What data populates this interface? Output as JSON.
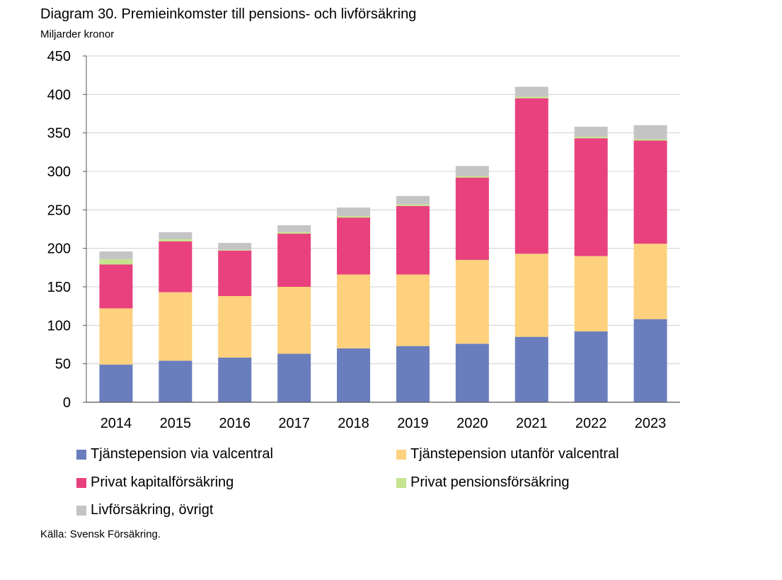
{
  "title": "Diagram 30. Premieinkomster till pensions- och livförsäkring",
  "subtitle": "Miljarder kronor",
  "source": "Källa: Svensk Försäkring.",
  "chart_data": {
    "type": "bar",
    "stacked": true,
    "title": "Diagram 30. Premieinkomster till pensions- och livförsäkring",
    "ylabel": "Miljarder kronor",
    "xlabel": "",
    "ylim": [
      0,
      450
    ],
    "yticks": [
      0,
      50,
      100,
      150,
      200,
      250,
      300,
      350,
      400,
      450
    ],
    "categories": [
      "2014",
      "2015",
      "2016",
      "2017",
      "2018",
      "2019",
      "2020",
      "2021",
      "2022",
      "2023"
    ],
    "series": [
      {
        "name": "Tjänstepension via valcentral",
        "color": "#6a7ebe",
        "values": [
          49,
          54,
          58,
          63,
          70,
          73,
          76,
          85,
          92,
          108
        ]
      },
      {
        "name": "Tjänstepension utanför valcentral",
        "color": "#fdd17d",
        "values": [
          73,
          89,
          80,
          87,
          96,
          93,
          109,
          108,
          98,
          98
        ]
      },
      {
        "name": "Privat kapitalförsäkring",
        "color": "#e8417e",
        "values": [
          57,
          66,
          59,
          69,
          74,
          89,
          107,
          202,
          153,
          134
        ]
      },
      {
        "name": "Privat pensionsförsäkring",
        "color": "#c6e38f",
        "values": [
          7,
          3,
          1,
          2,
          2,
          2,
          2,
          2,
          2,
          2
        ]
      },
      {
        "name": "Livförsäkring, övrigt",
        "color": "#c4c4c4",
        "values": [
          10,
          9,
          9,
          9,
          11,
          11,
          13,
          13,
          13,
          18
        ]
      }
    ],
    "legend": "bottom",
    "grid": true
  }
}
